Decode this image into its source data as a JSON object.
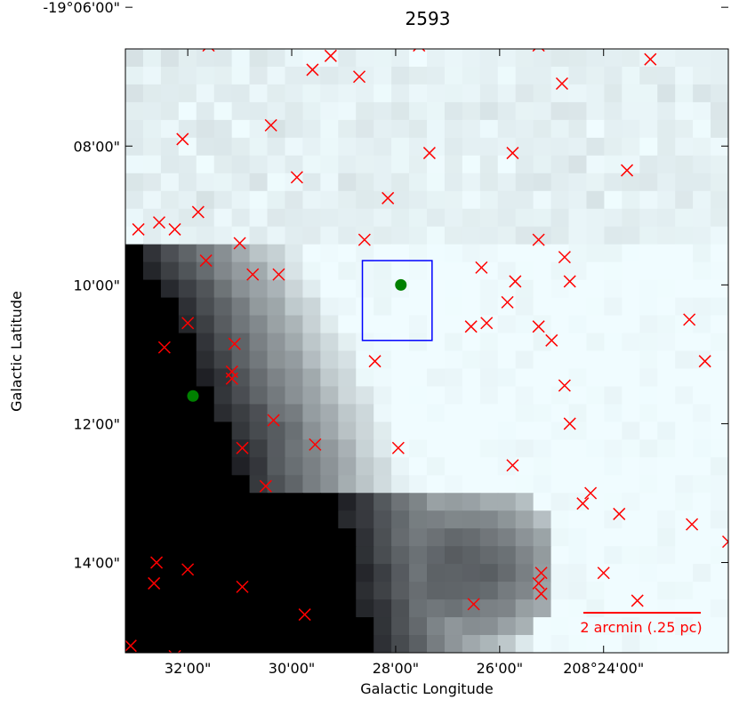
{
  "chart_data": {
    "type": "scatter",
    "title": "2593",
    "xlabel": "Galactic Longitude",
    "ylabel": "Galactic Latitude",
    "xlim_arcmin": [
      33.2,
      21.6
    ],
    "ylim_arcmin": [
      -1146.6,
      -1155.3
    ],
    "x_ticks": [
      {
        "value": 32,
        "label": "32'00\""
      },
      {
        "value": 30,
        "label": "30'00\""
      },
      {
        "value": 28,
        "label": "28'00\""
      },
      {
        "value": 26,
        "label": "26'00\""
      },
      {
        "value": 24,
        "label": "208°24'00\""
      }
    ],
    "y_ticks": [
      {
        "value": -1146,
        "label": "-19°06'00\""
      },
      {
        "value": -1148,
        "label": "08'00\""
      },
      {
        "value": -1150,
        "label": "10'00\""
      },
      {
        "value": -1152,
        "label": "12'00\""
      },
      {
        "value": -1154,
        "label": "14'00\""
      }
    ],
    "scale_bar": {
      "label": "2 arcmin (.25 pc)",
      "length_arcmin": 2,
      "color": "#ff0000"
    },
    "target_box": {
      "x": [
        28.64,
        27.3
      ],
      "y": [
        -1149.65,
        -1150.8
      ],
      "color": "#0000ff"
    },
    "green_markers": {
      "color": "#008000",
      "points": [
        [
          27.9,
          -1150.0
        ],
        [
          31.9,
          -1151.6
        ]
      ]
    },
    "red_markers": {
      "color": "#ff0000",
      "points": [
        [
          26.9,
          -1145.0
        ],
        [
          25.75,
          -1145.1
        ],
        [
          25.55,
          -1145.25
        ],
        [
          30.3,
          -1145.5
        ],
        [
          30.3,
          -1145.65
        ],
        [
          27.75,
          -1145.6
        ],
        [
          28.05,
          -1145.75
        ],
        [
          28.05,
          -1145.85
        ],
        [
          26.4,
          -1146.0
        ],
        [
          32.15,
          -1146.1
        ],
        [
          31.7,
          -1146.25
        ],
        [
          30.65,
          -1146.3
        ],
        [
          30.7,
          -1146.4
        ],
        [
          25.35,
          -1146.35
        ],
        [
          31.6,
          -1146.55
        ],
        [
          29.25,
          -1146.7
        ],
        [
          27.55,
          -1146.55
        ],
        [
          23.1,
          -1146.75
        ],
        [
          25.25,
          -1146.55
        ],
        [
          28.7,
          -1147.0
        ],
        [
          29.6,
          -1146.9
        ],
        [
          24.8,
          -1147.1
        ],
        [
          32.1,
          -1147.9
        ],
        [
          30.4,
          -1147.7
        ],
        [
          27.35,
          -1148.1
        ],
        [
          25.75,
          -1148.1
        ],
        [
          23.55,
          -1148.35
        ],
        [
          29.9,
          -1148.45
        ],
        [
          28.15,
          -1148.75
        ],
        [
          31.8,
          -1148.95
        ],
        [
          32.25,
          -1149.2
        ],
        [
          32.55,
          -1149.1
        ],
        [
          32.95,
          -1149.2
        ],
        [
          31.0,
          -1149.4
        ],
        [
          31.65,
          -1149.65
        ],
        [
          30.75,
          -1149.85
        ],
        [
          30.25,
          -1149.85
        ],
        [
          28.6,
          -1149.35
        ],
        [
          25.25,
          -1149.35
        ],
        [
          24.75,
          -1149.6
        ],
        [
          25.7,
          -1149.95
        ],
        [
          24.65,
          -1149.95
        ],
        [
          26.35,
          -1149.75
        ],
        [
          25.85,
          -1150.25
        ],
        [
          26.25,
          -1150.55
        ],
        [
          25.25,
          -1150.6
        ],
        [
          25.0,
          -1150.8
        ],
        [
          22.35,
          -1150.5
        ],
        [
          22.05,
          -1151.1
        ],
        [
          32.45,
          -1150.9
        ],
        [
          32.0,
          -1150.55
        ],
        [
          31.1,
          -1150.85
        ],
        [
          31.15,
          -1151.35
        ],
        [
          31.15,
          -1151.25
        ],
        [
          28.4,
          -1151.1
        ],
        [
          26.55,
          -1150.6
        ],
        [
          24.75,
          -1151.45
        ],
        [
          24.65,
          -1152.0
        ],
        [
          30.35,
          -1151.95
        ],
        [
          29.55,
          -1152.3
        ],
        [
          30.95,
          -1152.35
        ],
        [
          27.95,
          -1152.35
        ],
        [
          25.75,
          -1152.6
        ],
        [
          24.25,
          -1153.0
        ],
        [
          24.4,
          -1153.15
        ],
        [
          30.5,
          -1152.9
        ],
        [
          23.7,
          -1153.3
        ],
        [
          22.3,
          -1153.45
        ],
        [
          21.6,
          -1153.7
        ],
        [
          32.6,
          -1154.0
        ],
        [
          32.65,
          -1154.3
        ],
        [
          32.0,
          -1154.1
        ],
        [
          30.95,
          -1154.35
        ],
        [
          29.75,
          -1154.75
        ],
        [
          25.2,
          -1154.15
        ],
        [
          25.25,
          -1154.3
        ],
        [
          25.2,
          -1154.45
        ],
        [
          26.5,
          -1154.6
        ],
        [
          24.0,
          -1154.15
        ],
        [
          23.35,
          -1154.55
        ],
        [
          33.1,
          -1155.2
        ],
        [
          32.25,
          -1155.35
        ]
      ]
    },
    "image": {
      "colormap": "bone",
      "description_levels": "dark dense region lower-left, bright field upper-right"
    }
  }
}
